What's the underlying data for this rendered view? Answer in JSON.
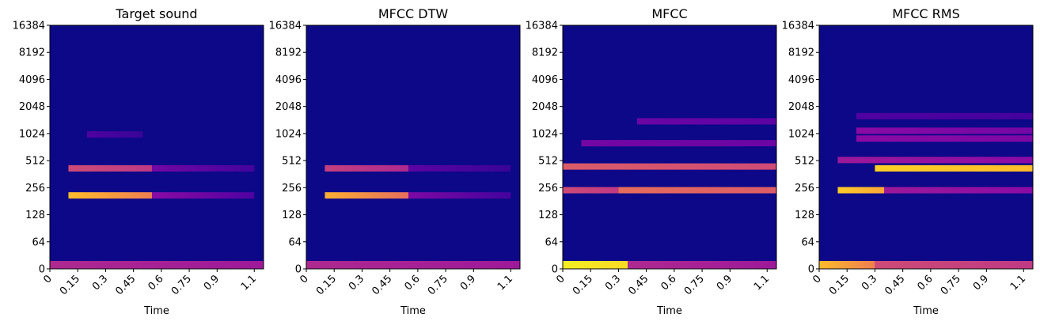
{
  "chart_data": [
    {
      "type": "heatmap",
      "title": "Target sound",
      "xlabel": "Time",
      "ylabel": "",
      "xlim": [
        0,
        1.15
      ],
      "x_ticks": [
        "0",
        "0.15",
        "0.3",
        "0.45",
        "0.6",
        "0.75",
        "0.9",
        "1.1"
      ],
      "y_ticks": [
        "0",
        "64",
        "128",
        "256",
        "512",
        "1024",
        "2048",
        "4096",
        "8192",
        "16384"
      ],
      "y_scale": "symlog",
      "colormap": "plasma",
      "bands": [
        {
          "freq": 0,
          "t": [
            0,
            1.15
          ],
          "level": [
            0.35,
            0.3
          ]
        },
        {
          "freq": 210,
          "t": [
            0.1,
            0.55
          ],
          "level": [
            0.75,
            0.6
          ]
        },
        {
          "freq": 210,
          "t": [
            0.55,
            1.1
          ],
          "level": [
            0.25,
            0.12
          ]
        },
        {
          "freq": 420,
          "t": [
            0.1,
            0.55
          ],
          "level": [
            0.45,
            0.4
          ]
        },
        {
          "freq": 420,
          "t": [
            0.55,
            1.1
          ],
          "level": [
            0.2,
            0.1
          ]
        },
        {
          "freq": 1000,
          "t": [
            0.2,
            0.5
          ],
          "level": [
            0.12,
            0.08
          ]
        }
      ]
    },
    {
      "type": "heatmap",
      "title": "MFCC DTW",
      "xlabel": "Time",
      "ylabel": "",
      "xlim": [
        0,
        1.15
      ],
      "x_ticks": [
        "0",
        "0.15",
        "0.3",
        "0.45",
        "0.6",
        "0.75",
        "0.9",
        "1.1"
      ],
      "y_ticks": [
        "0",
        "64",
        "128",
        "256",
        "512",
        "1024",
        "2048",
        "4096",
        "8192",
        "16384"
      ],
      "y_scale": "symlog",
      "colormap": "plasma",
      "bands": [
        {
          "freq": 0,
          "t": [
            0,
            1.15
          ],
          "level": [
            0.35,
            0.3
          ]
        },
        {
          "freq": 210,
          "t": [
            0.1,
            0.55
          ],
          "level": [
            0.72,
            0.55
          ]
        },
        {
          "freq": 210,
          "t": [
            0.55,
            1.1
          ],
          "level": [
            0.22,
            0.1
          ]
        },
        {
          "freq": 420,
          "t": [
            0.1,
            0.55
          ],
          "level": [
            0.42,
            0.35
          ]
        },
        {
          "freq": 420,
          "t": [
            0.55,
            1.1
          ],
          "level": [
            0.15,
            0.08
          ]
        }
      ]
    },
    {
      "type": "heatmap",
      "title": "MFCC",
      "xlabel": "Time",
      "ylabel": "",
      "xlim": [
        0,
        1.15
      ],
      "x_ticks": [
        "0",
        "0.15",
        "0.3",
        "0.45",
        "0.6",
        "0.75",
        "0.9",
        "1.1"
      ],
      "y_ticks": [
        "0",
        "64",
        "128",
        "256",
        "512",
        "1024",
        "2048",
        "4096",
        "8192",
        "16384"
      ],
      "y_scale": "symlog",
      "colormap": "plasma",
      "bands": [
        {
          "freq": 0,
          "t": [
            0,
            0.35
          ],
          "level": [
            0.95,
            0.85
          ]
        },
        {
          "freq": 0,
          "t": [
            0.35,
            1.15
          ],
          "level": [
            0.35,
            0.3
          ]
        },
        {
          "freq": 240,
          "t": [
            0,
            0.3
          ],
          "level": [
            0.45,
            0.4
          ]
        },
        {
          "freq": 240,
          "t": [
            0.3,
            1.15
          ],
          "level": [
            0.55,
            0.5
          ]
        },
        {
          "freq": 440,
          "t": [
            0,
            1.15
          ],
          "level": [
            0.5,
            0.45
          ]
        },
        {
          "freq": 800,
          "t": [
            0.1,
            1.15
          ],
          "level": [
            0.2,
            0.18
          ]
        },
        {
          "freq": 1400,
          "t": [
            0.4,
            1.15
          ],
          "level": [
            0.18,
            0.15
          ]
        }
      ]
    },
    {
      "type": "heatmap",
      "title": "MFCC RMS",
      "xlabel": "Time",
      "ylabel": "",
      "xlim": [
        0,
        1.15
      ],
      "x_ticks": [
        "0",
        "0.15",
        "0.3",
        "0.45",
        "0.6",
        "0.75",
        "0.9",
        "1.1"
      ],
      "y_ticks": [
        "0",
        "64",
        "128",
        "256",
        "512",
        "1024",
        "2048",
        "4096",
        "8192",
        "16384"
      ],
      "y_scale": "symlog",
      "colormap": "plasma",
      "bands": [
        {
          "freq": 0,
          "t": [
            0,
            0.3
          ],
          "level": [
            0.75,
            0.6
          ]
        },
        {
          "freq": 0,
          "t": [
            0.3,
            1.15
          ],
          "level": [
            0.45,
            0.4
          ]
        },
        {
          "freq": 240,
          "t": [
            0.1,
            0.35
          ],
          "level": [
            0.8,
            0.7
          ]
        },
        {
          "freq": 240,
          "t": [
            0.35,
            1.15
          ],
          "level": [
            0.3,
            0.25
          ]
        },
        {
          "freq": 420,
          "t": [
            0.3,
            1.15
          ],
          "level": [
            0.82,
            0.75
          ]
        },
        {
          "freq": 520,
          "t": [
            0.1,
            1.15
          ],
          "level": [
            0.3,
            0.25
          ]
        },
        {
          "freq": 900,
          "t": [
            0.2,
            1.15
          ],
          "level": [
            0.25,
            0.22
          ]
        },
        {
          "freq": 1100,
          "t": [
            0.2,
            1.15
          ],
          "level": [
            0.25,
            0.2
          ]
        },
        {
          "freq": 1600,
          "t": [
            0.2,
            1.15
          ],
          "level": [
            0.12,
            0.1
          ]
        }
      ]
    }
  ]
}
